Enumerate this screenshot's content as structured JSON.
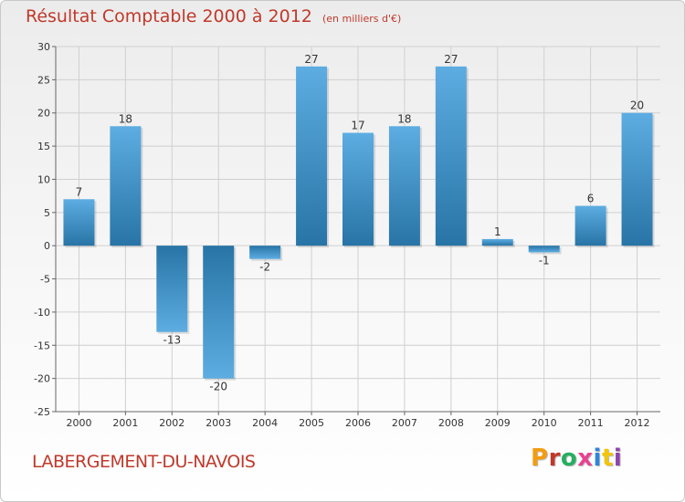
{
  "header": {
    "title": "Résultat Comptable 2000 à 2012",
    "subtitle": "(en milliers d'€)"
  },
  "footer": {
    "commune": "LABERGEMENT-DU-NAVOIS",
    "logo_text": "Proxiti",
    "logo_colors": [
      "#f39c12",
      "#c0392b",
      "#27ae60",
      "#e84393",
      "#2e86de",
      "#f1c40f",
      "#8e44ad"
    ]
  },
  "colors": {
    "bar_light": "#5dade2",
    "bar_dark": "#2e86c1",
    "grid": "#d0d0d0",
    "axis_text": "#333333"
  },
  "chart_data": {
    "type": "bar",
    "title": "Résultat Comptable 2000 à 2012",
    "subtitle": "(en milliers d'€)",
    "categories": [
      "2000",
      "2001",
      "2002",
      "2003",
      "2004",
      "2005",
      "2006",
      "2007",
      "2008",
      "2009",
      "2010",
      "2011",
      "2012"
    ],
    "values": [
      7,
      18,
      -13,
      -20,
      -2,
      27,
      17,
      18,
      27,
      1,
      -1,
      6,
      20
    ],
    "data_labels": [
      "7",
      "18",
      "-13",
      "-20",
      "-2",
      "27",
      "17",
      "18",
      "27",
      "1",
      "-1",
      "6",
      "20"
    ],
    "ylim": [
      -25,
      30
    ],
    "yticks": [
      30,
      25,
      20,
      15,
      10,
      5,
      0,
      -5,
      -10,
      -15,
      -20,
      -25
    ],
    "ytick_labels": [
      "30",
      "25",
      "20",
      "15",
      "10",
      "5",
      "0",
      "-5",
      "-10",
      "-15",
      "-20",
      "-25"
    ],
    "xlabel": "",
    "ylabel": "",
    "grid": true
  }
}
